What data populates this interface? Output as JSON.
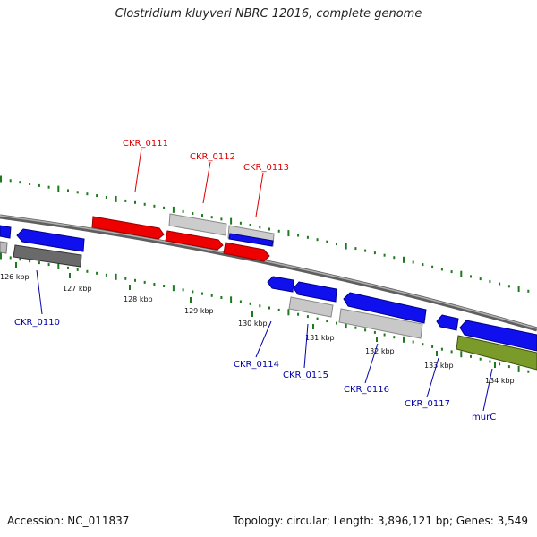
{
  "title": "Clostridium kluyveri NBRC 12016, complete genome",
  "footer": {
    "accession": "Accession: NC_011837",
    "stats": "Topology: circular; Length: 3,896,121 bp; Genes: 3,549"
  },
  "colors": {
    "forward_red": "#ee0000",
    "forward_gray": "#c8c8c8",
    "reverse_blue": "#1010ee",
    "reverse_gray": "#9a9a9a",
    "olive": "#7a9a2a",
    "backbone": "#777777",
    "gc_dots": "#1e7a1e",
    "label_red": "#dd0000",
    "label_blue": "#0000aa"
  },
  "ticks": [
    {
      "label": "126 kbp"
    },
    {
      "label": "127 kbp"
    },
    {
      "label": "128 kbp"
    },
    {
      "label": "129 kbp"
    },
    {
      "label": "130 kbp"
    },
    {
      "label": "131 kbp"
    },
    {
      "label": "132 kbp"
    },
    {
      "label": "133 kbp"
    },
    {
      "label": "134 kbp"
    }
  ],
  "gene_labels": [
    {
      "name": "CKR_0110",
      "strand": "reverse"
    },
    {
      "name": "CKR_0111",
      "strand": "forward"
    },
    {
      "name": "CKR_0112",
      "strand": "forward"
    },
    {
      "name": "CKR_0113",
      "strand": "forward"
    },
    {
      "name": "CKR_0114",
      "strand": "reverse"
    },
    {
      "name": "CKR_0115",
      "strand": "reverse"
    },
    {
      "name": "CKR_0116",
      "strand": "reverse"
    },
    {
      "name": "CKR_0117",
      "strand": "reverse"
    },
    {
      "name": "murC",
      "strand": "reverse"
    }
  ]
}
